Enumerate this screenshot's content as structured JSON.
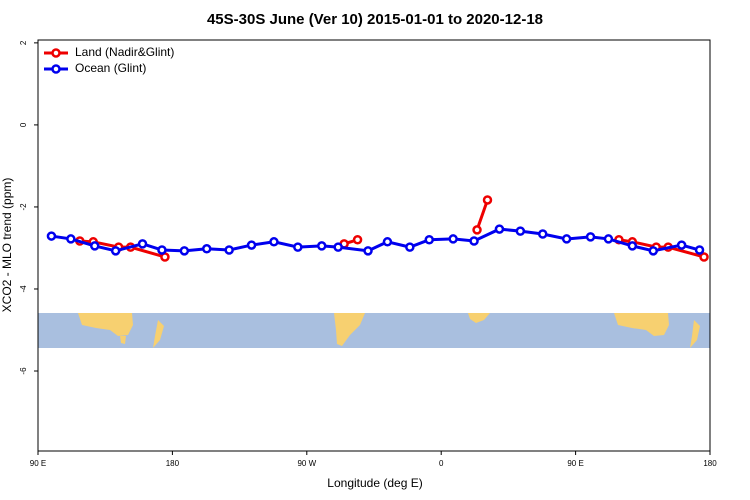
{
  "chart_data": {
    "type": "line",
    "title": "45S-30S June (Ver 10)   2015-01-01 to 2020-12-18",
    "x_label": "Longitude (deg E)",
    "y_label": "XCO2 - MLO trend (ppm)",
    "xlim": [
      90,
      540
    ],
    "ylim": [
      -7.95,
      2.07
    ],
    "xticks": [
      {
        "value": 90,
        "label": "90 E"
      },
      180,
      {
        "value": 270,
        "label": "90 W"
      },
      {
        "value": 360,
        "label": "0"
      },
      {
        "value": 450,
        "label": "90 E"
      },
      {
        "value": 540,
        "label": "180"
      }
    ],
    "yticks": [
      2,
      0,
      -2,
      -4,
      -6
    ],
    "legend": "top-left",
    "series": [
      {
        "name": "Land (Nadir&Glint)",
        "color": "#ee0000",
        "x": [
          118,
          127,
          144,
          152,
          175,
          240,
          295,
          304,
          340,
          384,
          391,
          430,
          479,
          488,
          504,
          512,
          536
        ],
        "values": [
          -2.83,
          -2.85,
          -2.98,
          -2.98,
          -3.22,
          null,
          -2.9,
          -2.8,
          null,
          -2.56,
          -1.83,
          null,
          -2.8,
          -2.85,
          -2.98,
          -2.98,
          -3.22
        ]
      },
      {
        "name": "Ocean (Glint)",
        "color": "#0000ee",
        "x": [
          99,
          112,
          128,
          142,
          160,
          173,
          188,
          203,
          218,
          233,
          248,
          264,
          280,
          291,
          311,
          324,
          339,
          352,
          368,
          382,
          399,
          413,
          428,
          444,
          460,
          472,
          488,
          502,
          521,
          533
        ],
        "values": [
          -2.71,
          -2.78,
          -2.95,
          -3.07,
          -2.9,
          -3.05,
          -3.07,
          -3.02,
          -3.05,
          -2.93,
          -2.85,
          -2.98,
          -2.95,
          -2.98,
          -3.07,
          -2.85,
          -2.98,
          -2.8,
          -2.78,
          -2.83,
          -2.54,
          -2.59,
          -2.66,
          -2.78,
          -2.73,
          -2.78,
          -2.95,
          -3.07,
          -2.93,
          -3.05
        ]
      }
    ]
  }
}
